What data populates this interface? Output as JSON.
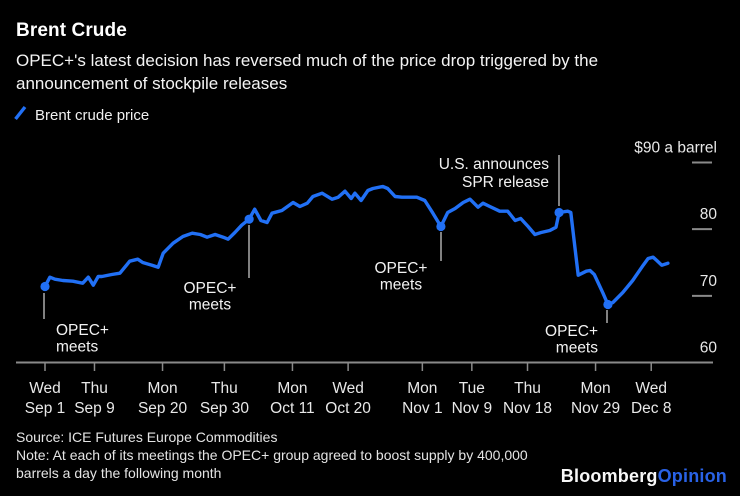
{
  "header": {
    "title": "Brent Crude",
    "subtitle": "OPEC+'s latest decision has reversed much of the price drop triggered by the announcement of stockpile releases"
  },
  "legend": {
    "label": "Brent crude price"
  },
  "colors": {
    "background": "#000000",
    "line_blue": "#2170f5",
    "text_primary": "#ffffff",
    "text_secondary": "#e8e8e8",
    "axis_gray": "#8a8a8a",
    "callout_gray": "#b8b8b8",
    "logo_blue": "#2962e6"
  },
  "chart_data": {
    "type": "line",
    "title": "Brent Crude",
    "series_name": "Brent crude price",
    "unit": "$ a barrel",
    "color": "#2170f5",
    "ylim": [
      60,
      90
    ],
    "grid": false,
    "legend_position": "top-left",
    "x_axis": {
      "description": "trading days from Wed Sep 1 2021 to ~Dec 10 2021, ticks labeled day-of-week over date",
      "ticks": [
        {
          "day": 0,
          "line1": "Wed",
          "line2": "Sep 1"
        },
        {
          "day": 8,
          "line1": "Thu",
          "line2": "Sep 9"
        },
        {
          "day": 19,
          "line1": "Mon",
          "line2": "Sep 20"
        },
        {
          "day": 29,
          "line1": "Thu",
          "line2": "Sep 30"
        },
        {
          "day": 40,
          "line1": "Mon",
          "line2": "Oct 11"
        },
        {
          "day": 49,
          "line1": "Wed",
          "line2": "Oct 20"
        },
        {
          "day": 61,
          "line1": "Mon",
          "line2": "Nov 1"
        },
        {
          "day": 69,
          "line1": "Tue",
          "line2": "Nov 9"
        },
        {
          "day": 78,
          "line1": "Thu",
          "line2": "Nov 18"
        },
        {
          "day": 89,
          "line1": "Mon",
          "line2": "Nov 29"
        },
        {
          "day": 98,
          "line1": "Wed",
          "line2": "Dec 8"
        }
      ]
    },
    "y_axis": {
      "ticks": [
        {
          "value": 90,
          "label": "$90 a barrel",
          "dash": true
        },
        {
          "value": 80,
          "label": "80",
          "dash": true
        },
        {
          "value": 70,
          "label": "70",
          "dash": true
        },
        {
          "value": 60,
          "label": "60",
          "dash": false
        }
      ]
    },
    "points": [
      [
        0,
        71.4
      ],
      [
        0.8,
        72.8
      ],
      [
        1.6,
        72.5
      ],
      [
        2.9,
        72.3
      ],
      [
        4.5,
        72.2
      ],
      [
        6.1,
        71.9
      ],
      [
        7,
        72.8
      ],
      [
        7.8,
        71.6
      ],
      [
        8.6,
        72.9
      ],
      [
        9.2,
        72.9
      ],
      [
        10.8,
        73.2
      ],
      [
        12.1,
        73.4
      ],
      [
        13.7,
        75.2
      ],
      [
        15,
        75.5
      ],
      [
        15.8,
        75.0
      ],
      [
        17.3,
        74.6
      ],
      [
        18.3,
        74.3
      ],
      [
        19.1,
        76.4
      ],
      [
        20.7,
        77.9
      ],
      [
        22.3,
        78.9
      ],
      [
        23.8,
        79.4
      ],
      [
        25.1,
        79.2
      ],
      [
        26.2,
        78.8
      ],
      [
        27.5,
        79.2
      ],
      [
        28.8,
        78.8
      ],
      [
        29.6,
        78.5
      ],
      [
        30.7,
        79.5
      ],
      [
        31.8,
        80.6
      ],
      [
        33,
        81.5
      ],
      [
        33.9,
        83.0
      ],
      [
        34.9,
        81.3
      ],
      [
        35.9,
        81.0
      ],
      [
        36.7,
        82.4
      ],
      [
        38.3,
        82.8
      ],
      [
        40.1,
        84.0
      ],
      [
        41.2,
        83.4
      ],
      [
        42.4,
        83.9
      ],
      [
        43.3,
        84.9
      ],
      [
        44.8,
        85.4
      ],
      [
        46.4,
        84.5
      ],
      [
        47.4,
        84.8
      ],
      [
        48.5,
        85.7
      ],
      [
        49.5,
        84.6
      ],
      [
        50.1,
        85.4
      ],
      [
        51.1,
        84.3
      ],
      [
        52.2,
        85.8
      ],
      [
        53,
        86.1
      ],
      [
        54.6,
        86.4
      ],
      [
        55.4,
        86.1
      ],
      [
        56.6,
        84.9
      ],
      [
        57.7,
        84.8
      ],
      [
        59.3,
        84.8
      ],
      [
        60.1,
        84.8
      ],
      [
        61.4,
        84.3
      ],
      [
        62.7,
        82.4
      ],
      [
        64,
        80.4
      ],
      [
        65.1,
        82.5
      ],
      [
        66.3,
        83.1
      ],
      [
        67.6,
        84.0
      ],
      [
        68.7,
        84.5
      ],
      [
        70,
        83.3
      ],
      [
        70.8,
        83.9
      ],
      [
        71.9,
        83.4
      ],
      [
        73.5,
        82.7
      ],
      [
        74.8,
        82.7
      ],
      [
        76,
        81.3
      ],
      [
        76.9,
        81.6
      ],
      [
        78.1,
        80.4
      ],
      [
        79.2,
        79.2
      ],
      [
        80.2,
        79.5
      ],
      [
        81.6,
        79.8
      ],
      [
        82.6,
        80.3
      ],
      [
        83.1,
        82.5
      ],
      [
        84.5,
        82.7
      ],
      [
        85,
        82.5
      ],
      [
        86.2,
        73.1
      ],
      [
        87.5,
        73.7
      ],
      [
        88.1,
        73.8
      ],
      [
        88.8,
        73.2
      ],
      [
        90.2,
        70.4
      ],
      [
        91,
        68.7
      ],
      [
        91.8,
        69.0
      ],
      [
        93.4,
        70.5
      ],
      [
        95,
        72.3
      ],
      [
        96.7,
        74.6
      ],
      [
        97.5,
        75.6
      ],
      [
        98.3,
        75.8
      ],
      [
        98.9,
        75.3
      ],
      [
        99.7,
        74.6
      ],
      [
        100.7,
        74.9
      ]
    ],
    "markers": [
      {
        "day": 0,
        "value": 71.4,
        "event": "OPEC+ meets"
      },
      {
        "day": 33,
        "value": 81.5,
        "event": "OPEC+ meets"
      },
      {
        "day": 64,
        "value": 80.4,
        "event": "OPEC+ meets"
      },
      {
        "day": 83.1,
        "value": 82.5,
        "event": "U.S. announces SPR release"
      },
      {
        "day": 91,
        "value": 68.7,
        "event": "OPEC+ meets"
      }
    ],
    "annotations": [
      {
        "label_lines": [
          "OPEC+",
          "meets"
        ],
        "anchor_day": 0,
        "anchor_value": 71.4,
        "connector": {
          "x": 44,
          "y1": 163,
          "y2": 189
        },
        "text_x": 56,
        "text_y": 205,
        "text_anchor": "start",
        "line_height": 16.5
      },
      {
        "label_lines": [
          "OPEC+",
          "meets"
        ],
        "anchor_day": 33,
        "anchor_value": 81.5,
        "connector": {
          "x": 249,
          "y1": 95,
          "y2": 148
        },
        "text_x": 210,
        "text_y": 163,
        "text_anchor": "middle",
        "line_height": 16.5
      },
      {
        "label_lines": [
          "OPEC+",
          "meets"
        ],
        "anchor_day": 64,
        "anchor_value": 80.4,
        "connector": {
          "x": 441,
          "y1": 102,
          "y2": 131
        },
        "text_x": 401,
        "text_y": 143,
        "text_anchor": "middle",
        "line_height": 16.5
      },
      {
        "label_lines": [
          "U.S. announces",
          "SPR release"
        ],
        "anchor_day": 83.1,
        "anchor_value": 82.5,
        "connector": {
          "x": 559,
          "y1": 25,
          "y2": 76
        },
        "text_x": 549,
        "text_y": 39,
        "text_anchor": "end",
        "line_height": 18
      },
      {
        "label_lines": [
          "OPEC+",
          "meets"
        ],
        "anchor_day": 91,
        "anchor_value": 68.7,
        "connector": {
          "x": 607,
          "y1": 180,
          "y2": 193
        },
        "text_x": 598,
        "text_y": 206,
        "text_anchor": "end",
        "line_height": 16.5
      }
    ]
  },
  "footer": {
    "source": "Source: ICE Futures Europe Commodities",
    "note": "Note: At each of its meetings the OPEC+ group agreed to boost supply by 400,000 barrels a day the following month"
  },
  "logo": {
    "part1": "Bloomberg",
    "part2": "Opinion"
  }
}
